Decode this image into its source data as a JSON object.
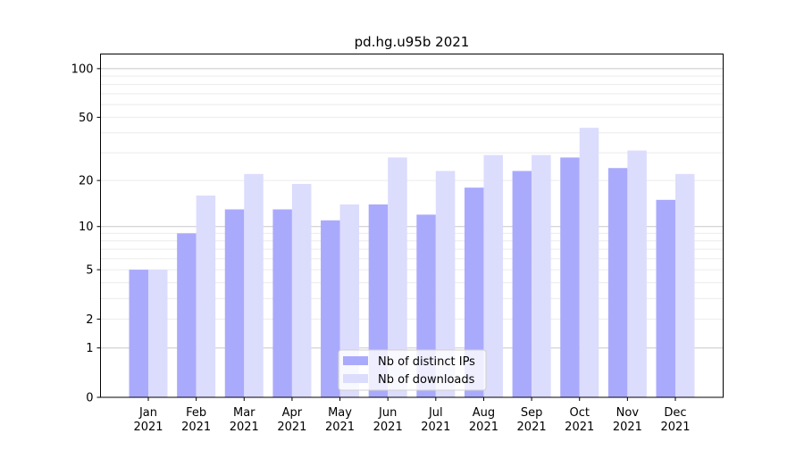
{
  "chart_data": {
    "type": "bar",
    "title": "pd.hg.u95b 2021",
    "xlabel": "",
    "ylabel": "",
    "yscale": "log(1+y)",
    "ylim": [
      0,
      123
    ],
    "yticks": [
      0,
      1,
      2,
      5,
      10,
      20,
      50,
      100
    ],
    "ytick_labels": [
      "0",
      "1",
      "2",
      "5",
      "10",
      "20",
      "50",
      "100"
    ],
    "grid": true,
    "legend_position": "bottom-center",
    "categories": [
      [
        "Jan",
        "2021"
      ],
      [
        "Feb",
        "2021"
      ],
      [
        "Mar",
        "2021"
      ],
      [
        "Apr",
        "2021"
      ],
      [
        "May",
        "2021"
      ],
      [
        "Jun",
        "2021"
      ],
      [
        "Jul",
        "2021"
      ],
      [
        "Aug",
        "2021"
      ],
      [
        "Sep",
        "2021"
      ],
      [
        "Oct",
        "2021"
      ],
      [
        "Nov",
        "2021"
      ],
      [
        "Dec",
        "2021"
      ]
    ],
    "series": [
      {
        "name": "Nb of distinct IPs",
        "color": "#aaaafc",
        "values": [
          5,
          9,
          13,
          13,
          11,
          14,
          12,
          18,
          23,
          28,
          24,
          15
        ]
      },
      {
        "name": "Nb of downloads",
        "color": "#dcdcfd",
        "values": [
          5,
          16,
          22,
          19,
          14,
          28,
          23,
          29,
          29,
          43,
          31,
          22
        ]
      }
    ]
  }
}
